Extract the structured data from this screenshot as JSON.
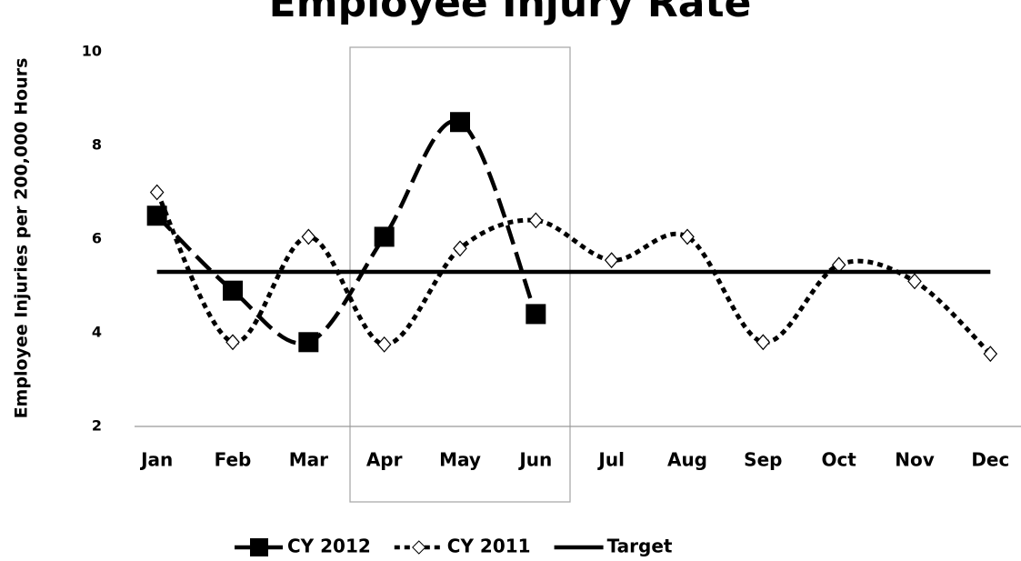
{
  "chart_data": {
    "type": "line",
    "title": "Employee Injury Rate",
    "y_label": "Employee Injuries per 200,000 Hours",
    "categories": [
      "Jan",
      "Feb",
      "Mar",
      "Apr",
      "May",
      "Jun",
      "Jul",
      "Aug",
      "Sep",
      "Oct",
      "Nov",
      "Dec"
    ],
    "series": [
      {
        "name": "CY 2012",
        "color": "#000000",
        "line_style": "dashed",
        "marker": "square",
        "smooth": true,
        "values": [
          6.5,
          4.9,
          3.8,
          6.05,
          8.5,
          4.4,
          null,
          null,
          null,
          null,
          null,
          null
        ]
      },
      {
        "name": "CY 2011",
        "color": "#000000",
        "line_style": "dotted",
        "marker": "diamond",
        "smooth": true,
        "values": [
          7.0,
          3.8,
          6.05,
          3.75,
          5.8,
          6.4,
          5.55,
          6.05,
          3.8,
          5.45,
          5.1,
          3.55
        ]
      },
      {
        "name": "Target",
        "color": "#000000",
        "line_style": "solid",
        "marker": null,
        "smooth": false,
        "values": [
          5.3,
          5.3,
          5.3,
          5.3,
          5.3,
          5.3,
          5.3,
          5.3,
          5.3,
          5.3,
          5.3,
          5.3
        ]
      }
    ],
    "ylim": [
      2,
      10
    ],
    "yticks": [
      2,
      4,
      6,
      8,
      10
    ],
    "grid": false,
    "legend": "bottom"
  }
}
